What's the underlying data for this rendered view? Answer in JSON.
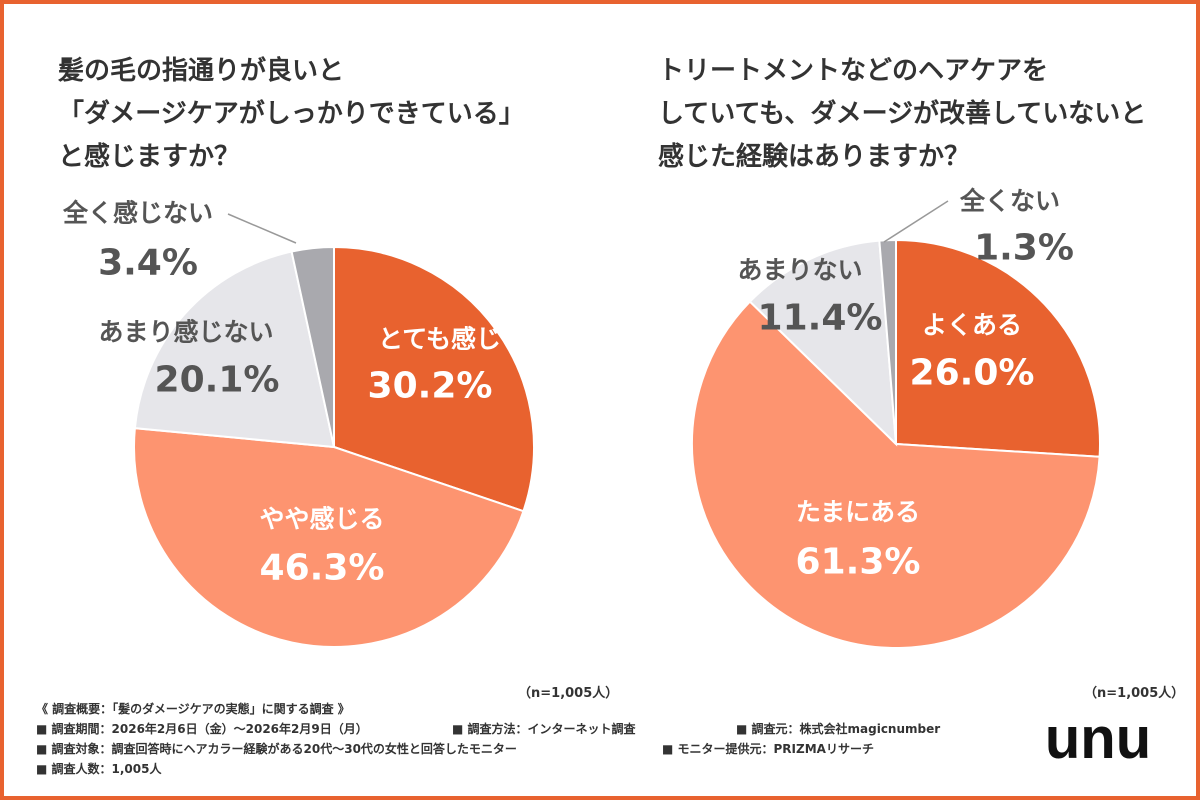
{
  "chart_data": [
    {
      "type": "pie",
      "title": "髪の毛の指通りが良いと\n「ダメージケアがしっかりできている」\nと感じますか？",
      "categories": [
        "とても感じる",
        "やや感じる",
        "あまり感じない",
        "全く感じない"
      ],
      "values": [
        30.2,
        46.3,
        20.1,
        3.4
      ],
      "labels": [
        "30.2%",
        "46.3%",
        "20.1%",
        "3.4%"
      ],
      "colors": [
        "#e8622f",
        "#fd9470",
        "#e6e6ea",
        "#a9a9ae"
      ],
      "n_label": "（n=1,005人）"
    },
    {
      "type": "pie",
      "title": "トリートメントなどのヘアケアを\nしていても、ダメージが改善していないと\n感じた経験はありますか？",
      "categories": [
        "よくある",
        "たまにある",
        "あまりない",
        "全くない"
      ],
      "values": [
        26.0,
        61.3,
        11.4,
        1.3
      ],
      "labels": [
        "26.0%",
        "61.3%",
        "11.4%",
        "1.3%"
      ],
      "colors": [
        "#e8622f",
        "#fd9470",
        "#e6e6ea",
        "#a9a9ae"
      ],
      "n_label": "（n=1,005人）"
    }
  ],
  "footer": {
    "heading": "《 調査概要：「髪のダメージケアの実態」に関する調査 》",
    "period": "■ 調査期間：2026年2月6日（金）～2026年2月9日（月）",
    "method": "■ 調査方法：インターネット調査",
    "source": "■ 調査元：株式会社magicnumber",
    "target": "■ 調査対象：調査回答時にヘアカラー経験がある20代～30代の女性と回答したモニター",
    "provider": "■ モニター提供元：PRIZMAリサーチ",
    "count": "■ 調査人数：1,005人"
  },
  "logo": {
    "text": "unu"
  }
}
